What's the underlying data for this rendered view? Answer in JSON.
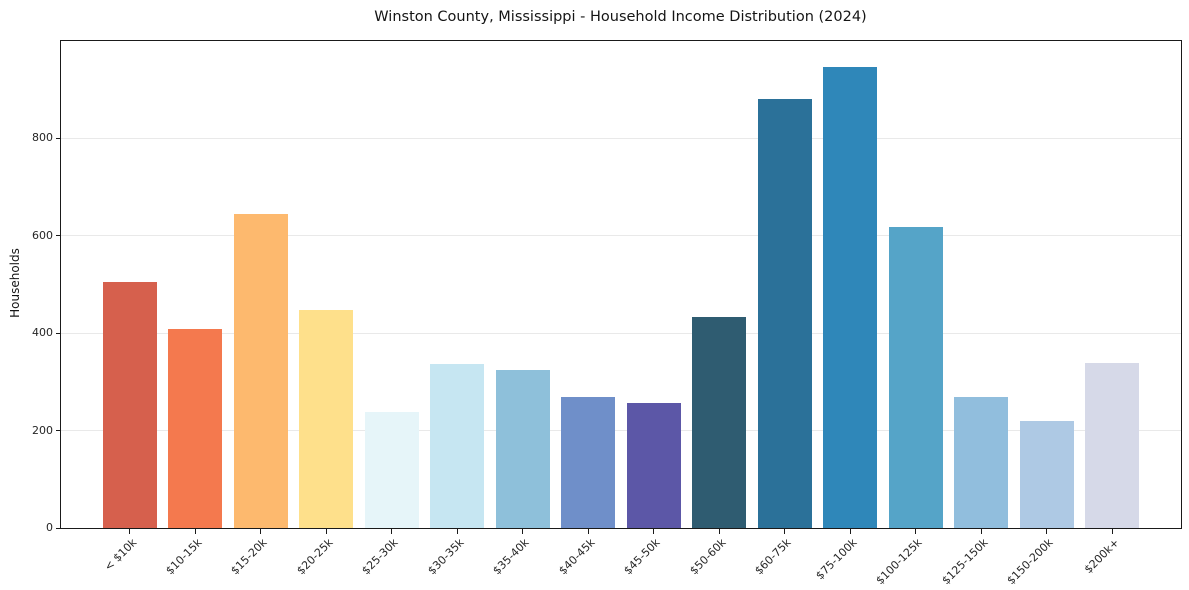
{
  "chart_data": {
    "type": "bar",
    "title": "Winston County, Mississippi - Household Income Distribution (2024)",
    "xlabel": "",
    "ylabel": "Households",
    "categories": [
      "< $10k",
      "$10-15k",
      "$15-20k",
      "$20-25k",
      "$25-30k",
      "$30-35k",
      "$35-40k",
      "$40-45k",
      "$45-50k",
      "$50-60k",
      "$60-75k",
      "$75-100k",
      "$100-125k",
      "$125-150k",
      "$150-200k",
      "$200k+"
    ],
    "values": [
      505,
      408,
      645,
      447,
      239,
      336,
      324,
      270,
      256,
      433,
      880,
      946,
      618,
      270,
      219,
      338
    ],
    "bar_colors": [
      "#d6604d",
      "#f4794e",
      "#fdb96e",
      "#fee08b",
      "#e6f5f9",
      "#c6e6f2",
      "#8ec0da",
      "#6f8fc9",
      "#5c57a7",
      "#2f5c71",
      "#2b7199",
      "#2f87b9",
      "#55a4c8",
      "#91bedd",
      "#aec9e4",
      "#d6d9e8"
    ],
    "ylim": [
      0,
      1000
    ],
    "yticks": [
      0,
      200,
      400,
      600,
      800
    ],
    "grid": "horizontal",
    "legend": "none",
    "background": "#ffffff"
  }
}
